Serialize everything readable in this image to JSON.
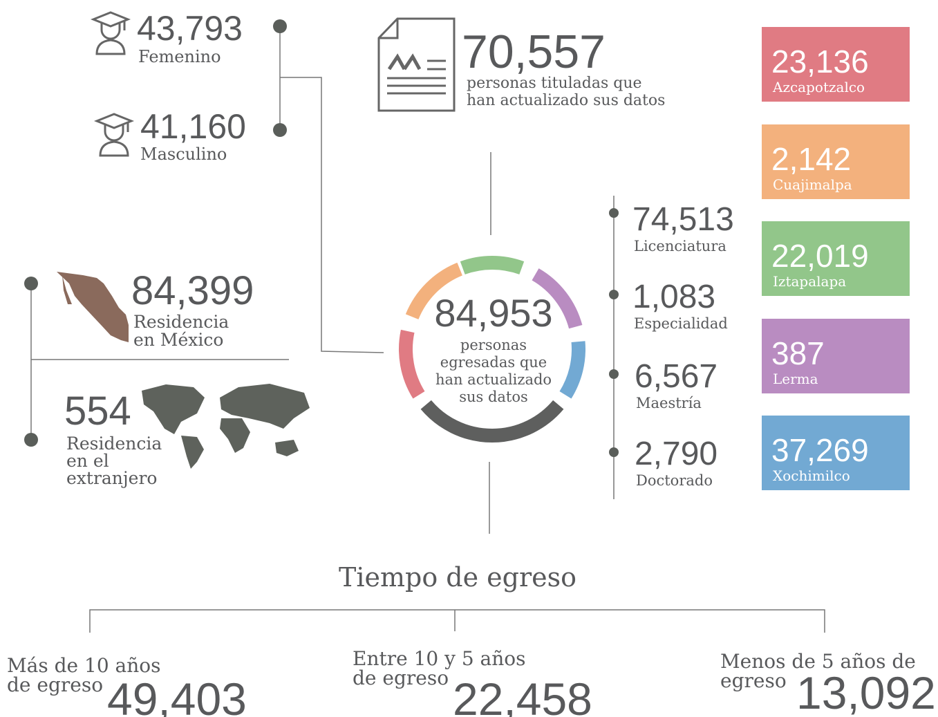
{
  "gender": [
    {
      "value": "43,793",
      "label": "Femenino"
    },
    {
      "value": "41,160",
      "label": "Masculino"
    }
  ],
  "titled": {
    "value": "70,557",
    "label_lines": [
      "personas tituladas que",
      "han actualizado sus datos"
    ]
  },
  "total": {
    "value": "84,953",
    "label_lines": [
      "personas",
      "egresadas que",
      "han actualizado",
      "sus datos"
    ]
  },
  "residence": [
    {
      "value": "84,399",
      "label_lines": [
        "Residencia",
        "en México"
      ]
    },
    {
      "value": "554",
      "label_lines": [
        "Residencia",
        "en el",
        "extranjero"
      ]
    }
  ],
  "levels": [
    {
      "value": "74,513",
      "label": "Licenciatura"
    },
    {
      "value": "1,083",
      "label": "Especialidad"
    },
    {
      "value": "6,567",
      "label": "Maestría"
    },
    {
      "value": "2,790",
      "label": "Doctorado"
    }
  ],
  "campuses": [
    {
      "value": "23,136",
      "label": "Azcapotzalco",
      "color": "#e07b83"
    },
    {
      "value": "2,142",
      "label": "Cuajimalpa",
      "color": "#f3b17d"
    },
    {
      "value": "22,019",
      "label": "Iztapalapa",
      "color": "#92c68a"
    },
    {
      "value": "387",
      "label": "Lerma",
      "color": "#b98cc1"
    },
    {
      "value": "37,269",
      "label": "Xochimilco",
      "color": "#72a9d3"
    }
  ],
  "egress": {
    "title": "Tiempo de egreso",
    "groups": [
      {
        "label_lines": [
          "Más de 10 años",
          "de egreso"
        ],
        "value": "49,403"
      },
      {
        "label_lines": [
          "Entre 10 y 5 años",
          "de egreso"
        ],
        "value": "22,458"
      },
      {
        "label_lines": [
          "Menos de 5 años de",
          "egreso"
        ],
        "value": "13,092"
      }
    ]
  }
}
